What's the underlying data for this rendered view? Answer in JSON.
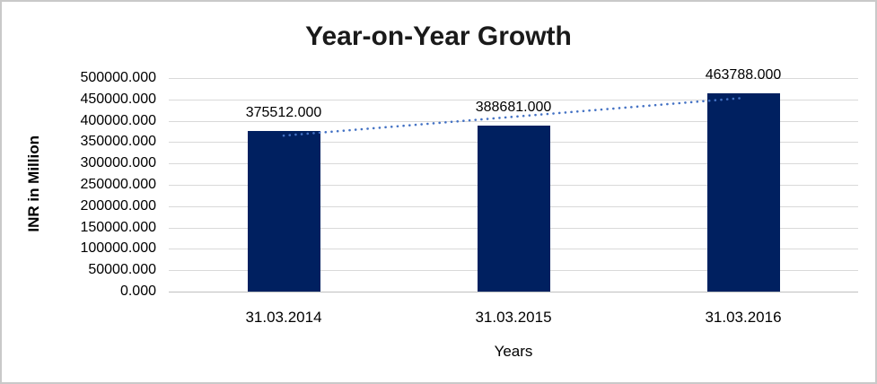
{
  "chart_data": {
    "type": "bar",
    "title": "Year-on-Year Growth",
    "xlabel": "Years",
    "ylabel": "INR in Million",
    "categories": [
      "31.03.2014",
      "31.03.2015",
      "31.03.2016"
    ],
    "values": [
      375512,
      388681,
      463788
    ],
    "data_labels": [
      "375512.000",
      "388681.000",
      "463788.000"
    ],
    "ylim": [
      0,
      500000
    ],
    "ytick_step": 50000,
    "ytick_labels": [
      "0.000",
      "50000.000",
      "100000.000",
      "150000.000",
      "200000.000",
      "250000.000",
      "300000.000",
      "350000.000",
      "400000.000",
      "450000.000",
      "500000.000"
    ],
    "grid": true,
    "legend": "none",
    "trendline": {
      "type": "linear",
      "style": "dotted"
    }
  },
  "colors": {
    "bar": "#002060",
    "trendline": "#4472C4",
    "gridline": "#d9d9d9",
    "axis_line": "#bfbfbf",
    "tick_text": "#000000",
    "title_text": "#1a1a1a",
    "background": "#ffffff",
    "frame_border": "#c9c9c9"
  }
}
